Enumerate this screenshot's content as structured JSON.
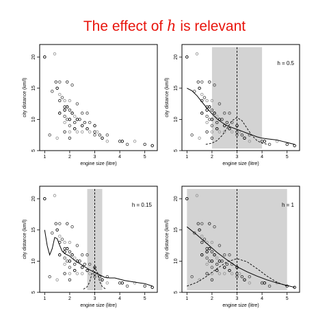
{
  "slide": {
    "title_before": "The effect of ",
    "title_math": "h",
    "title_after": " is relevant"
  },
  "colors": {
    "title": "#e8140c",
    "window": "#d3d3d3",
    "ink": "#000000"
  },
  "chart_data": [
    {
      "type": "scatter",
      "title": "",
      "xlabel": "engine size (litre)",
      "ylabel": "city distance (km/l)",
      "xlim": [
        0.8,
        5.5
      ],
      "ylim": [
        5,
        22
      ],
      "xticks": [
        1,
        2,
        3,
        4,
        5
      ],
      "yticks": [
        5,
        10,
        15,
        20
      ],
      "bandwidth_label": "",
      "window": null,
      "center": null,
      "smooth": [],
      "kernel": []
    },
    {
      "type": "scatter",
      "title": "",
      "xlabel": "engine size (litre)",
      "ylabel": "city distance (km/l)",
      "xlim": [
        0.8,
        5.5
      ],
      "ylim": [
        5,
        22
      ],
      "xticks": [
        1,
        2,
        3,
        4,
        5
      ],
      "yticks": [
        5,
        10,
        15,
        20
      ],
      "bandwidth_label": "h = 0.5",
      "window": [
        2.0,
        4.0
      ],
      "center": 3.0,
      "smooth": [
        [
          1.0,
          15.0
        ],
        [
          1.2,
          14.6
        ],
        [
          1.4,
          13.8
        ],
        [
          1.6,
          12.8
        ],
        [
          1.8,
          11.8
        ],
        [
          2.0,
          10.9
        ],
        [
          2.2,
          10.1
        ],
        [
          2.4,
          9.5
        ],
        [
          2.6,
          9.0
        ],
        [
          2.8,
          8.7
        ],
        [
          3.0,
          8.4
        ],
        [
          3.2,
          8.1
        ],
        [
          3.4,
          7.8
        ],
        [
          3.6,
          7.5
        ],
        [
          3.8,
          7.2
        ],
        [
          4.0,
          7.0
        ],
        [
          4.2,
          6.9
        ],
        [
          4.4,
          6.8
        ],
        [
          4.6,
          6.7
        ],
        [
          4.8,
          6.5
        ],
        [
          5.0,
          6.3
        ],
        [
          5.3,
          6.0
        ]
      ],
      "kernel": [
        [
          1.75,
          6.0
        ],
        [
          2.0,
          6.2
        ],
        [
          2.2,
          6.6
        ],
        [
          2.4,
          7.4
        ],
        [
          2.6,
          8.6
        ],
        [
          2.8,
          9.8
        ],
        [
          3.0,
          10.3
        ],
        [
          3.2,
          9.8
        ],
        [
          3.4,
          8.6
        ],
        [
          3.6,
          7.4
        ],
        [
          3.8,
          6.6
        ],
        [
          4.0,
          6.2
        ],
        [
          4.25,
          6.0
        ]
      ]
    },
    {
      "type": "scatter",
      "title": "",
      "xlabel": "engine size (litre)",
      "ylabel": "city distance (km/l)",
      "xlim": [
        0.8,
        5.5
      ],
      "ylim": [
        5,
        22
      ],
      "xticks": [
        1,
        2,
        3,
        4,
        5
      ],
      "yticks": [
        5,
        10,
        15,
        20
      ],
      "bandwidth_label": "h = 0.15",
      "window": [
        2.7,
        3.3
      ],
      "center": 3.0,
      "smooth": [
        [
          1.0,
          15.0
        ],
        [
          1.1,
          12.5
        ],
        [
          1.2,
          11.0
        ],
        [
          1.3,
          12.0
        ],
        [
          1.4,
          13.8
        ],
        [
          1.5,
          13.6
        ],
        [
          1.6,
          12.5
        ],
        [
          1.7,
          11.6
        ],
        [
          1.8,
          11.2
        ],
        [
          2.0,
          10.8
        ],
        [
          2.2,
          10.1
        ],
        [
          2.4,
          9.6
        ],
        [
          2.6,
          9.1
        ],
        [
          2.8,
          8.6
        ],
        [
          3.0,
          8.2
        ],
        [
          3.2,
          7.8
        ],
        [
          3.4,
          7.4
        ],
        [
          3.6,
          7.3
        ],
        [
          3.8,
          7.3
        ],
        [
          4.0,
          7.1
        ],
        [
          4.2,
          6.9
        ],
        [
          4.5,
          6.7
        ],
        [
          4.8,
          6.5
        ],
        [
          5.0,
          6.4
        ],
        [
          5.3,
          6.0
        ]
      ],
      "kernel": [
        [
          2.55,
          5.5
        ],
        [
          2.7,
          5.9
        ],
        [
          2.8,
          6.7
        ],
        [
          2.9,
          8.2
        ],
        [
          3.0,
          9.0
        ],
        [
          3.1,
          8.2
        ],
        [
          3.2,
          6.7
        ],
        [
          3.3,
          5.9
        ],
        [
          3.45,
          5.5
        ]
      ]
    },
    {
      "type": "scatter",
      "title": "",
      "xlabel": "engine size (litre)",
      "ylabel": "city distance (km/l)",
      "xlim": [
        0.8,
        5.5
      ],
      "ylim": [
        5,
        22
      ],
      "xticks": [
        1,
        2,
        3,
        4,
        5
      ],
      "yticks": [
        5,
        10,
        15,
        20
      ],
      "bandwidth_label": "h = 1",
      "window": [
        1.0,
        5.0
      ],
      "center": 3.0,
      "smooth": [
        [
          1.0,
          15.5
        ],
        [
          1.4,
          14.2
        ],
        [
          1.8,
          12.8
        ],
        [
          2.2,
          11.4
        ],
        [
          2.6,
          10.2
        ],
        [
          3.0,
          9.1
        ],
        [
          3.4,
          8.3
        ],
        [
          3.8,
          7.6
        ],
        [
          4.2,
          7.0
        ],
        [
          4.6,
          6.5
        ],
        [
          5.0,
          6.1
        ],
        [
          5.3,
          5.8
        ]
      ],
      "kernel": [
        [
          1.0,
          6.0
        ],
        [
          1.4,
          6.6
        ],
        [
          1.8,
          7.6
        ],
        [
          2.2,
          8.8
        ],
        [
          2.6,
          9.9
        ],
        [
          3.0,
          10.4
        ],
        [
          3.4,
          9.9
        ],
        [
          3.8,
          8.8
        ],
        [
          4.2,
          7.6
        ],
        [
          4.6,
          6.6
        ],
        [
          5.0,
          6.0
        ]
      ]
    }
  ],
  "points": [
    [
      1.0,
      20.0
    ],
    [
      1.3,
      14.5
    ],
    [
      1.4,
      20.5
    ],
    [
      1.45,
      16.0
    ],
    [
      1.5,
      15.0
    ],
    [
      1.6,
      16.0
    ],
    [
      1.6,
      14.0
    ],
    [
      1.6,
      13.0
    ],
    [
      1.6,
      11.0
    ],
    [
      1.7,
      13.5
    ],
    [
      1.8,
      13.0
    ],
    [
      1.8,
      12.0
    ],
    [
      1.8,
      11.5
    ],
    [
      1.8,
      10.5
    ],
    [
      1.8,
      9.5
    ],
    [
      1.9,
      16.0
    ],
    [
      1.9,
      12.0
    ],
    [
      1.9,
      10.0
    ],
    [
      2.0,
      13.0
    ],
    [
      2.0,
      11.5
    ],
    [
      2.0,
      10.0
    ],
    [
      2.0,
      9.0
    ],
    [
      2.0,
      8.0
    ],
    [
      2.0,
      7.0
    ],
    [
      2.1,
      11.0
    ],
    [
      2.1,
      15.5
    ],
    [
      2.2,
      10.5
    ],
    [
      2.2,
      9.5
    ],
    [
      2.2,
      8.5
    ],
    [
      2.3,
      12.5
    ],
    [
      2.3,
      8.0
    ],
    [
      2.4,
      10.0
    ],
    [
      2.5,
      9.0
    ],
    [
      2.5,
      11.0
    ],
    [
      2.5,
      8.0
    ],
    [
      2.6,
      9.5
    ],
    [
      2.7,
      8.5
    ],
    [
      2.8,
      9.5
    ],
    [
      2.8,
      8.0
    ],
    [
      3.0,
      8.0
    ],
    [
      3.0,
      9.0
    ],
    [
      3.0,
      7.5
    ],
    [
      3.1,
      8.0
    ],
    [
      3.2,
      7.5
    ],
    [
      3.3,
      7.0
    ],
    [
      3.5,
      7.5
    ],
    [
      3.5,
      6.5
    ],
    [
      4.0,
      6.5
    ],
    [
      4.1,
      6.5
    ],
    [
      4.3,
      6.0
    ],
    [
      4.6,
      6.5
    ],
    [
      5.0,
      6.0
    ],
    [
      5.3,
      5.8
    ],
    [
      1.2,
      7.5
    ],
    [
      1.5,
      7.0
    ],
    [
      1.8,
      8.0
    ],
    [
      2.3,
      10.0
    ],
    [
      2.7,
      11.0
    ]
  ]
}
